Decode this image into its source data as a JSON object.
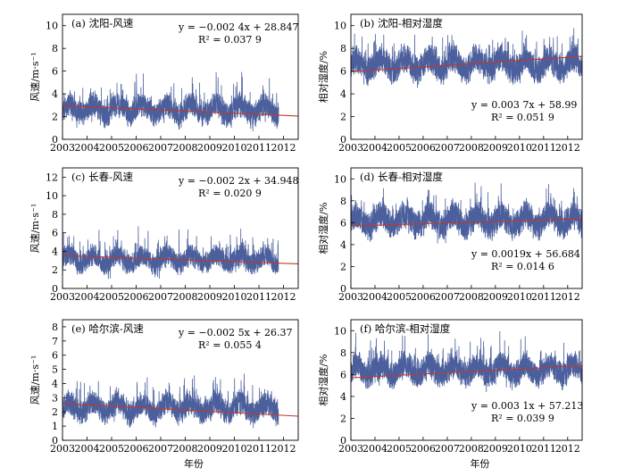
{
  "chart_data": [
    {
      "id": "a",
      "type": "line",
      "title": "(a) 沈阳-风速",
      "ylabel": "风速/m·s⁻¹",
      "xlabel": "",
      "xlim": [
        2003,
        2012.6
      ],
      "ylim": [
        0,
        11
      ],
      "xticks": [
        "2003",
        "2004",
        "2005",
        "2006",
        "2007",
        "2008",
        "2009",
        "2010",
        "2011",
        "2012"
      ],
      "yticks": [
        "0",
        "2",
        "4",
        "6",
        "8",
        "10"
      ],
      "eq_line1": "y = −0.002 4x + 28.847",
      "eq_line2": "R² = 0.037 9",
      "eq_pos": "top-right",
      "series": [
        {
          "values_summary": {
            "x_start": 2003.0,
            "x_end": 2011.8,
            "mean": 2.6,
            "min": 0.4,
            "max": 9.2
          }
        }
      ],
      "trend": {
        "x": [
          2003.0,
          2012.6
        ],
        "y": [
          2.95,
          2.05
        ]
      },
      "seed": 11,
      "amp": 1.05,
      "spike": 3.0
    },
    {
      "id": "b",
      "type": "line",
      "title": "(b) 沈阳-相对湿度",
      "ylabel": "相对湿度/%",
      "xlabel": "",
      "xlim": [
        2003,
        2012.6
      ],
      "ylim": [
        0,
        11
      ],
      "xticks": [
        "2003",
        "2004",
        "2005",
        "2006",
        "2007",
        "2008",
        "2009",
        "2010",
        "2011",
        "2012"
      ],
      "yticks": [
        "0",
        "2",
        "4",
        "6",
        "8",
        "10"
      ],
      "eq_line1": "y = 0.003 7x + 58.99",
      "eq_line2": "R² = 0.051 9",
      "eq_pos": "bottom-right",
      "series": [
        {
          "values_summary": {
            "x_start": 2003.0,
            "x_end": 2012.6,
            "mean": 6.6,
            "min": 1.2,
            "max": 10.0
          }
        }
      ],
      "trend": {
        "x": [
          2003.0,
          2012.6
        ],
        "y": [
          5.95,
          7.3
        ]
      },
      "seed": 23,
      "amp": 1.2,
      "spike": 2.8
    },
    {
      "id": "c",
      "type": "line",
      "title": "(c) 长春-风速",
      "ylabel": "风速/m·s⁻¹",
      "xlabel": "",
      "xlim": [
        2003,
        2012.6
      ],
      "ylim": [
        0,
        13
      ],
      "xticks": [
        "2003",
        "2004",
        "2005",
        "2006",
        "2007",
        "2008",
        "2009",
        "2010",
        "2011",
        "2012"
      ],
      "yticks": [
        "0",
        "2",
        "4",
        "6",
        "8",
        "10",
        "12"
      ],
      "eq_line1": "y = −0.002 2x + 34.948",
      "eq_line2": "R² = 0.020 9",
      "eq_pos": "top-right",
      "series": [
        {
          "values_summary": {
            "x_start": 2003.0,
            "x_end": 2011.8,
            "mean": 3.1,
            "min": 0.6,
            "max": 11.0
          }
        }
      ],
      "trend": {
        "x": [
          2003.0,
          2012.6
        ],
        "y": [
          3.55,
          2.65
        ]
      },
      "seed": 37,
      "amp": 1.15,
      "spike": 3.4
    },
    {
      "id": "d",
      "type": "line",
      "title": "(d) 长春-相对湿度",
      "ylabel": "相对湿度/%",
      "xlabel": "",
      "xlim": [
        2003,
        2012.6
      ],
      "ylim": [
        0,
        11
      ],
      "xticks": [
        "2003",
        "2004",
        "2005",
        "2006",
        "2007",
        "2008",
        "2009",
        "2010",
        "2011",
        "2012"
      ],
      "yticks": [
        "0",
        "2",
        "4",
        "6",
        "8",
        "10"
      ],
      "eq_line1": "y = 0.0019x + 56.684",
      "eq_line2": "R² = 0.014 6",
      "eq_pos": "bottom-right",
      "series": [
        {
          "values_summary": {
            "x_start": 2003.0,
            "x_end": 2012.6,
            "mean": 6.2,
            "min": 1.0,
            "max": 10.0
          }
        }
      ],
      "trend": {
        "x": [
          2003.0,
          2012.6
        ],
        "y": [
          5.7,
          6.35
        ]
      },
      "seed": 41,
      "amp": 1.25,
      "spike": 2.8
    },
    {
      "id": "e",
      "type": "line",
      "title": "(e) 哈尔滨-风速",
      "ylabel": "风速/m·s⁻¹",
      "xlabel": "年份",
      "xlim": [
        2003,
        2012.6
      ],
      "ylim": [
        0,
        8.5
      ],
      "xticks": [
        "2003",
        "2004",
        "2005",
        "2006",
        "2007",
        "2008",
        "2009",
        "2010",
        "2011",
        "2012"
      ],
      "yticks": [
        "0",
        "1",
        "2",
        "3",
        "4",
        "5",
        "6",
        "7",
        "8"
      ],
      "eq_line1": "y = −0.002 5x + 26.37",
      "eq_line2": "R² = 0.055 4",
      "eq_pos": "top-right",
      "series": [
        {
          "values_summary": {
            "x_start": 2003.0,
            "x_end": 2011.8,
            "mean": 2.3,
            "min": 0.6,
            "max": 7.0
          }
        }
      ],
      "trend": {
        "x": [
          2003.0,
          2012.6
        ],
        "y": [
          2.6,
          1.7
        ]
      },
      "seed": 53,
      "amp": 0.85,
      "spike": 2.4
    },
    {
      "id": "f",
      "type": "line",
      "title": "(f) 哈尔滨-相对湿度",
      "ylabel": "相对湿度/%",
      "xlabel": "年份",
      "xlim": [
        2003,
        2012.6
      ],
      "ylim": [
        0,
        11
      ],
      "xticks": [
        "2003",
        "2004",
        "2005",
        "2006",
        "2007",
        "2008",
        "2009",
        "2010",
        "2011",
        "2012"
      ],
      "yticks": [
        "0",
        "2",
        "4",
        "6",
        "8",
        "10"
      ],
      "eq_line1": "y = 0.003 1x + 57.213",
      "eq_line2": "R² = 0.039 9",
      "eq_pos": "bottom-right",
      "series": [
        {
          "values_summary": {
            "x_start": 2003.0,
            "x_end": 2012.6,
            "mean": 6.4,
            "min": 1.4,
            "max": 10.0
          }
        }
      ],
      "trend": {
        "x": [
          2003.0,
          2012.6
        ],
        "y": [
          5.7,
          6.8
        ]
      },
      "seed": 67,
      "amp": 1.2,
      "spike": 2.8
    }
  ],
  "colors": {
    "series": "#4a5f9c",
    "trend": "#c0392b",
    "axis": "#000000"
  }
}
